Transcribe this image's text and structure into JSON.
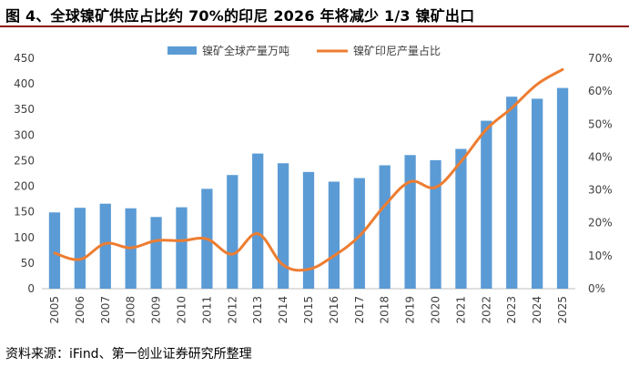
{
  "title": "图 4、全球镍矿供应占比约 70%的印尼 2026 年将减少 1/3 镍矿出口",
  "source": "资料来源：iFind、第一创业证券研究所整理",
  "colors": {
    "bar": "#5b9bd5",
    "line": "#ed7d31",
    "title_rule": "#8e0d12"
  },
  "chart_data": {
    "type": "bar+line",
    "categories": [
      "2005",
      "2006",
      "2007",
      "2008",
      "2009",
      "2010",
      "2011",
      "2012",
      "2013",
      "2014",
      "2015",
      "2016",
      "2017",
      "2018",
      "2019",
      "2020",
      "2021",
      "2022",
      "2023",
      "2024",
      "2025"
    ],
    "series": [
      {
        "name": "镍矿全球产量万吨",
        "type": "bar",
        "axis": "left",
        "values": [
          149,
          158,
          166,
          157,
          140,
          159,
          195,
          222,
          264,
          245,
          228,
          209,
          216,
          241,
          261,
          251,
          273,
          328,
          375,
          371,
          392
        ]
      },
      {
        "name": "镍矿印尼产量占比",
        "type": "line",
        "axis": "right",
        "values": [
          10.8,
          8.9,
          13.7,
          12.4,
          14.6,
          14.6,
          15.1,
          10.5,
          16.7,
          7.2,
          5.9,
          10.0,
          16.0,
          25.3,
          32.5,
          30.8,
          38.6,
          48.4,
          54.9,
          62.1,
          66.6
        ]
      }
    ],
    "y_left": {
      "min": 0,
      "max": 450,
      "step": 50,
      "ticks": [
        "0",
        "50",
        "100",
        "150",
        "200",
        "250",
        "300",
        "350",
        "400",
        "450"
      ]
    },
    "y_right": {
      "min": 0,
      "max": 70,
      "step": 10,
      "ticks": [
        "0%",
        "10%",
        "20%",
        "30%",
        "40%",
        "50%",
        "60%",
        "70%"
      ]
    },
    "legend_position": "top-center",
    "grid": false
  }
}
